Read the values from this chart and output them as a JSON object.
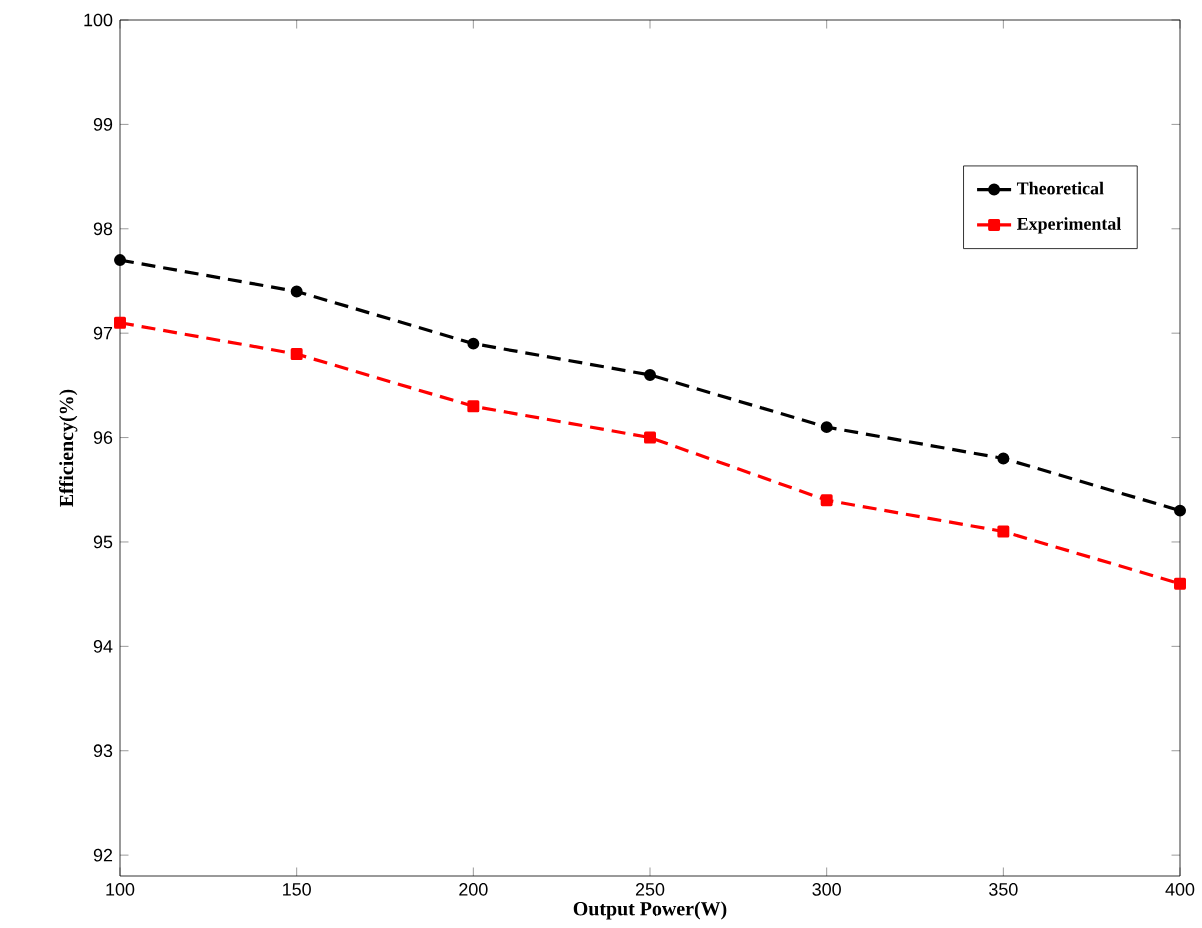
{
  "chart_data": {
    "type": "line",
    "xlabel": "Output Power(W)",
    "ylabel": "Efficiency(%)",
    "x": [
      100,
      150,
      200,
      250,
      300,
      350,
      400
    ],
    "series": [
      {
        "name": "Theoretical",
        "color": "#000000",
        "marker": "circle",
        "line_style": "dashed",
        "values": [
          97.7,
          97.4,
          96.9,
          96.6,
          96.1,
          95.8,
          95.3
        ]
      },
      {
        "name": "Experimental",
        "color": "#ff0000",
        "marker": "square",
        "line_style": "dashed",
        "values": [
          97.1,
          96.8,
          96.3,
          96.0,
          95.4,
          95.1,
          94.6
        ]
      }
    ],
    "xlim": [
      100,
      400
    ],
    "xticks": [
      100,
      150,
      200,
      250,
      300,
      350,
      400
    ],
    "ylim": [
      91.8,
      100
    ],
    "yticks": [
      92,
      93,
      94,
      95,
      96,
      97,
      98,
      99,
      100
    ],
    "grid": false,
    "legend": "top right"
  }
}
